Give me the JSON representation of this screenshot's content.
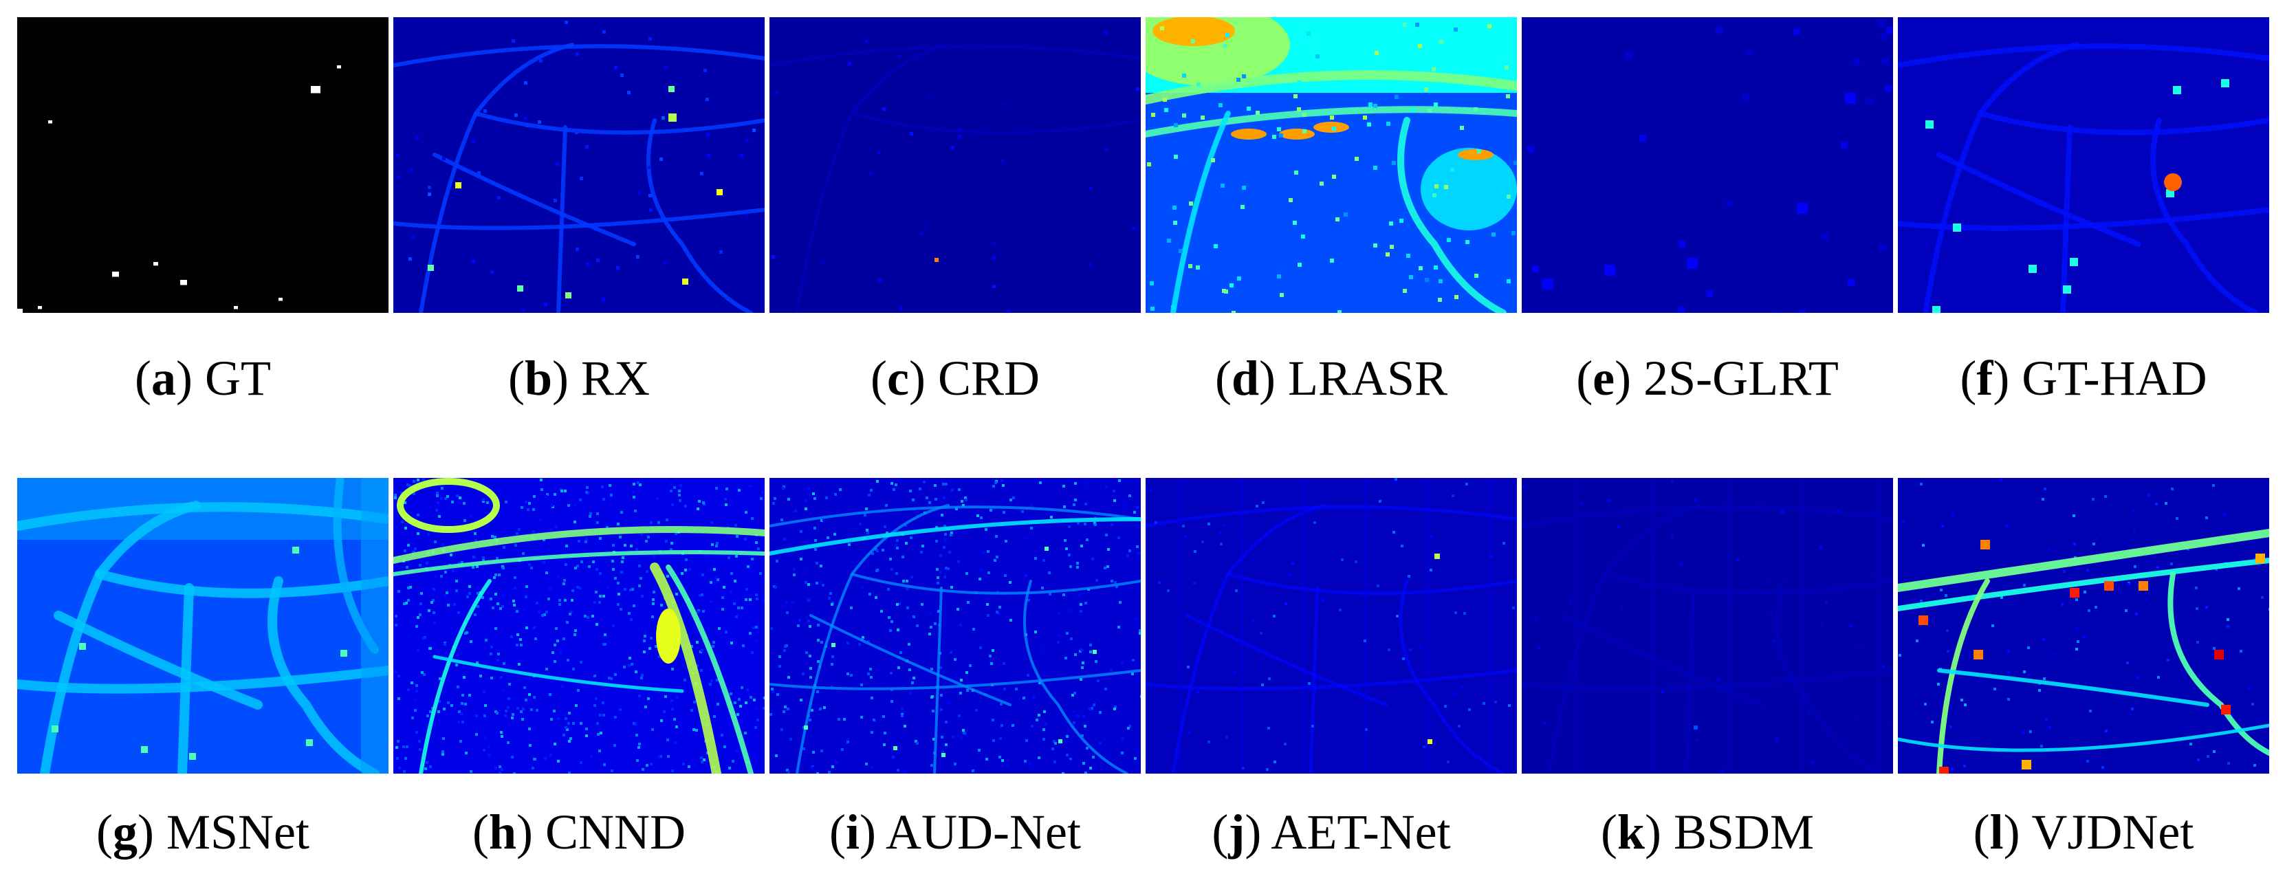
{
  "figure": {
    "panels": [
      {
        "letter": "a",
        "method": "GT",
        "kind": "gt"
      },
      {
        "letter": "b",
        "method": "RX",
        "kind": "rx"
      },
      {
        "letter": "c",
        "method": "CRD",
        "kind": "crd"
      },
      {
        "letter": "d",
        "method": "LRASR",
        "kind": "lrasr"
      },
      {
        "letter": "e",
        "method": "2S-GLRT",
        "kind": "glrt"
      },
      {
        "letter": "f",
        "method": "GT-HAD",
        "kind": "gthad"
      },
      {
        "letter": "g",
        "method": "MSNet",
        "kind": "msnet"
      },
      {
        "letter": "h",
        "method": "CNND",
        "kind": "cnnd"
      },
      {
        "letter": "i",
        "method": "AUD-Net",
        "kind": "audnet"
      },
      {
        "letter": "j",
        "method": "AET-Net",
        "kind": "aetnet"
      },
      {
        "letter": "k",
        "method": "BSDM",
        "kind": "bsdm"
      },
      {
        "letter": "l",
        "method": "VJDNet",
        "kind": "vjdnet"
      }
    ],
    "colors": {
      "gt_background": "#000000",
      "gt_target": "#ffffff",
      "jet_low": "#00008f",
      "jet_mid": "#00ffff",
      "jet_high": "#ff0000"
    }
  }
}
